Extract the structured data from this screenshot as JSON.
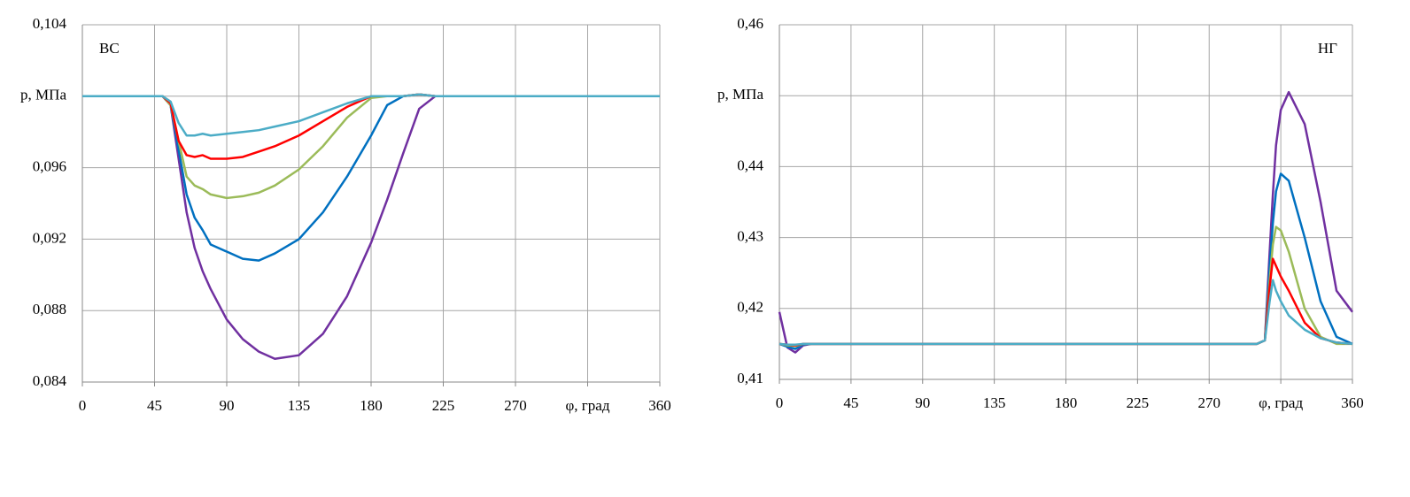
{
  "chart_data": [
    {
      "type": "line",
      "annotation": "ВС",
      "x": [
        0,
        30,
        50,
        55,
        60,
        65,
        70,
        75,
        80,
        90,
        100,
        110,
        120,
        135,
        150,
        165,
        180,
        190,
        200,
        210,
        220,
        240,
        270,
        300,
        330,
        360
      ],
      "series": [
        {
          "color": "#7030a0",
          "values": [
            0.1,
            0.1,
            0.1,
            0.0995,
            0.0965,
            0.0935,
            0.0915,
            0.0902,
            0.0892,
            0.0875,
            0.0864,
            0.0857,
            0.0853,
            0.0855,
            0.0867,
            0.0888,
            0.0918,
            0.0942,
            0.0968,
            0.0993,
            0.1,
            0.1,
            0.1,
            0.1,
            0.1,
            0.1
          ]
        },
        {
          "color": "#0070c0",
          "values": [
            0.1,
            0.1,
            0.1,
            0.0995,
            0.097,
            0.0945,
            0.0932,
            0.0925,
            0.0917,
            0.0913,
            0.0909,
            0.0908,
            0.0912,
            0.092,
            0.0935,
            0.0955,
            0.0978,
            0.0995,
            0.1,
            0.1001,
            0.1,
            0.1,
            0.1,
            0.1,
            0.1,
            0.1
          ]
        },
        {
          "color": "#9bbb59",
          "values": [
            0.1,
            0.1,
            0.1,
            0.0995,
            0.0975,
            0.0955,
            0.095,
            0.0948,
            0.0945,
            0.0943,
            0.0944,
            0.0946,
            0.095,
            0.0959,
            0.0972,
            0.0988,
            0.0999,
            0.1,
            0.1,
            0.1001,
            0.1,
            0.1,
            0.1,
            0.1,
            0.1,
            0.1
          ]
        },
        {
          "color": "#ff0000",
          "values": [
            0.1,
            0.1,
            0.1,
            0.0996,
            0.0975,
            0.0967,
            0.0966,
            0.0967,
            0.0965,
            0.0965,
            0.0966,
            0.0969,
            0.0972,
            0.0978,
            0.0986,
            0.0994,
            0.1,
            0.1,
            0.1,
            0.1001,
            0.1,
            0.1,
            0.1,
            0.1,
            0.1,
            0.1
          ]
        },
        {
          "color": "#4bacc6",
          "values": [
            0.1,
            0.1,
            0.1,
            0.0997,
            0.0985,
            0.0978,
            0.0978,
            0.0979,
            0.0978,
            0.0979,
            0.098,
            0.0981,
            0.0983,
            0.0986,
            0.0991,
            0.0996,
            0.1,
            0.1,
            0.1,
            0.1001,
            0.1,
            0.1,
            0.1,
            0.1,
            0.1,
            0.1
          ]
        }
      ],
      "xlim": [
        0,
        360
      ],
      "xticks": [
        0,
        45,
        90,
        135,
        180,
        225,
        270,
        {
          "value": 315,
          "label": "φ, град"
        },
        360
      ],
      "ylim": [
        0.084,
        0.104
      ],
      "yticks": [
        {
          "value": 0.084,
          "label": "0,084"
        },
        {
          "value": 0.088,
          "label": "0,088"
        },
        {
          "value": 0.092,
          "label": "0,092"
        },
        {
          "value": 0.096,
          "label": "0,096"
        },
        {
          "value": 0.1,
          "label": "p, МПа"
        },
        {
          "value": 0.104,
          "label": "0,104"
        }
      ],
      "grid": true
    },
    {
      "type": "line",
      "annotation": "НГ",
      "x": [
        0,
        5,
        10,
        15,
        20,
        60,
        120,
        180,
        240,
        300,
        305,
        308,
        310,
        312,
        315,
        320,
        330,
        340,
        350,
        360
      ],
      "series": [
        {
          "color": "#7030a0",
          "values": [
            0.4195,
            0.4145,
            0.4138,
            0.4148,
            0.415,
            0.415,
            0.415,
            0.415,
            0.415,
            0.415,
            0.4155,
            0.428,
            0.436,
            0.443,
            0.448,
            0.4505,
            0.446,
            0.435,
            0.4225,
            0.4195
          ]
        },
        {
          "color": "#0070c0",
          "values": [
            0.415,
            0.4146,
            0.4143,
            0.4149,
            0.415,
            0.415,
            0.415,
            0.415,
            0.415,
            0.415,
            0.4155,
            0.426,
            0.432,
            0.4365,
            0.439,
            0.438,
            0.43,
            0.421,
            0.416,
            0.415
          ]
        },
        {
          "color": "#9bbb59",
          "values": [
            0.415,
            0.4148,
            0.4147,
            0.415,
            0.415,
            0.415,
            0.415,
            0.415,
            0.415,
            0.415,
            0.4155,
            0.424,
            0.429,
            0.4315,
            0.431,
            0.428,
            0.42,
            0.416,
            0.415,
            0.415
          ]
        },
        {
          "color": "#ff0000",
          "values": [
            0.415,
            0.4149,
            0.4148,
            0.415,
            0.415,
            0.415,
            0.415,
            0.415,
            0.415,
            0.415,
            0.4155,
            0.423,
            0.427,
            0.426,
            0.4245,
            0.4225,
            0.418,
            0.4158,
            0.4152,
            0.415
          ]
        },
        {
          "color": "#4bacc6",
          "values": [
            0.415,
            0.4149,
            0.4149,
            0.415,
            0.415,
            0.415,
            0.415,
            0.415,
            0.415,
            0.415,
            0.4155,
            0.421,
            0.424,
            0.4225,
            0.421,
            0.419,
            0.417,
            0.4158,
            0.4152,
            0.415
          ]
        }
      ],
      "xlim": [
        0,
        360
      ],
      "xticks": [
        0,
        45,
        90,
        135,
        180,
        225,
        270,
        {
          "value": 315,
          "label": "φ, град"
        },
        360
      ],
      "ylim": [
        0.41,
        0.46
      ],
      "yticks": [
        {
          "value": 0.41,
          "label": "0,41"
        },
        {
          "value": 0.42,
          "label": "0,42"
        },
        {
          "value": 0.43,
          "label": "0,43"
        },
        {
          "value": 0.44,
          "label": "0,44"
        },
        {
          "value": 0.45,
          "label": "p, МПа"
        },
        {
          "value": 0.46,
          "label": "0,46"
        }
      ],
      "grid": true
    }
  ]
}
